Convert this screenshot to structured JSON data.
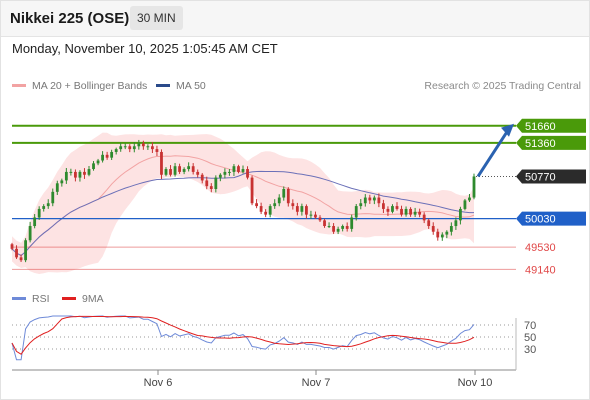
{
  "header": {
    "title": "Nikkei 225 (OSE)",
    "interval": "30 MIN"
  },
  "datetime": "Monday, November 10, 2025 1:05:45 AM CET",
  "legend": {
    "ma20": "MA 20 + Bollinger Bands",
    "ma50": "MA 50",
    "rsi": "RSI",
    "rsi_ma": "9MA"
  },
  "credit": "Research © 2025 Trading Central",
  "colors": {
    "green": "#4a9a0a",
    "blue": "#2060c8",
    "red": "#e04848",
    "dark": "#2b2b2b",
    "band_fill": "#fde3e3",
    "ma20": "#f2a3a3",
    "ma50": "#6b70b8",
    "arrow": "#2a62b0"
  },
  "chart_data": {
    "type": "candlestick",
    "price_axis": {
      "range": [
        48900,
        52200
      ]
    },
    "x_labels": [
      "Nov 6",
      "Nov 7",
      "Nov 10"
    ],
    "levels": [
      {
        "value": 51660,
        "label": "51660",
        "kind": "resistance",
        "color": "#4a9a0a"
      },
      {
        "value": 51360,
        "label": "51360",
        "kind": "resistance",
        "color": "#4a9a0a"
      },
      {
        "value": 50770,
        "label": "50770",
        "kind": "last",
        "color": "#2b2b2b"
      },
      {
        "value": 50030,
        "label": "50030",
        "kind": "pivot",
        "color": "#2060c8"
      },
      {
        "value": 49530,
        "label": "49530",
        "kind": "support",
        "color": "#e04848"
      },
      {
        "value": 49140,
        "label": "49140",
        "kind": "support",
        "color": "#e04848"
      }
    ],
    "closes": [
      49500,
      49350,
      49300,
      49650,
      49900,
      50050,
      50200,
      50250,
      50300,
      50500,
      50650,
      50700,
      50850,
      50850,
      50750,
      50850,
      50800,
      50900,
      51000,
      51050,
      51150,
      51100,
      51200,
      51250,
      51300,
      51300,
      51250,
      51300,
      51350,
      51300,
      51300,
      51250,
      51200,
      50800,
      50900,
      50800,
      50950,
      50850,
      50900,
      50950,
      50850,
      50800,
      50700,
      50600,
      50550,
      50750,
      50800,
      50850,
      50850,
      50950,
      50850,
      50900,
      50750,
      50300,
      50250,
      50150,
      50100,
      50250,
      50300,
      50400,
      50550,
      50300,
      50250,
      50150,
      50250,
      50100,
      50100,
      50050,
      50000,
      49900,
      49900,
      49800,
      49850,
      49900,
      49850,
      50050,
      50250,
      50300,
      50400,
      50350,
      50400,
      50300,
      50200,
      50150,
      50250,
      50200,
      50100,
      50200,
      50100,
      50150,
      50100,
      50000,
      49900,
      49800,
      49700,
      49750,
      49800,
      49900,
      50000,
      50200,
      50350,
      50400,
      50770
    ],
    "rsi": {
      "levels": [
        70,
        50,
        30
      ],
      "range": [
        0,
        90
      ]
    }
  }
}
